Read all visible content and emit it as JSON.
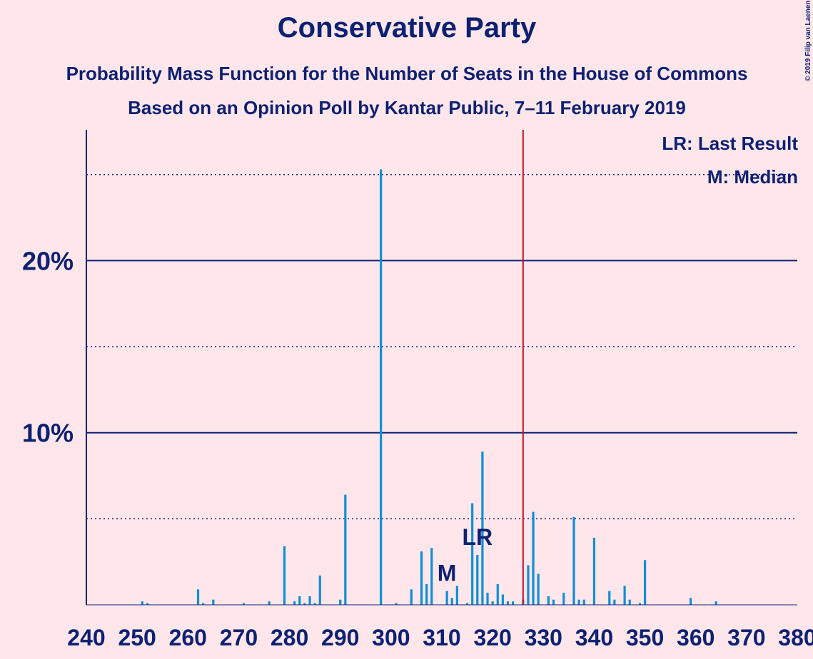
{
  "chart_data": {
    "type": "bar",
    "title": "Conservative Party",
    "subtitle": "Probability Mass Function for the Number of Seats in the House of Commons",
    "subtitle2": "Based on an Opinion Poll by Kantar Public, 7–11 February 2019",
    "copyright": "© 2019 Filip van Laenen",
    "legend": [
      "LR: Last Result",
      "M: Median"
    ],
    "color": "#0f8fd8",
    "x": [
      240,
      241,
      242,
      243,
      244,
      245,
      246,
      247,
      248,
      249,
      250,
      251,
      252,
      253,
      254,
      255,
      256,
      257,
      258,
      259,
      260,
      261,
      262,
      263,
      264,
      265,
      266,
      267,
      268,
      269,
      270,
      271,
      272,
      273,
      274,
      275,
      276,
      277,
      278,
      279,
      280,
      281,
      282,
      283,
      284,
      285,
      286,
      287,
      288,
      289,
      290,
      291,
      292,
      293,
      294,
      295,
      296,
      297,
      298,
      299,
      300,
      301,
      302,
      303,
      304,
      305,
      306,
      307,
      308,
      309,
      310,
      311,
      312,
      313,
      314,
      315,
      316,
      317,
      318,
      319,
      320,
      321,
      322,
      323,
      324,
      325,
      326,
      327,
      328,
      329,
      330,
      331,
      332,
      333,
      334,
      335,
      336,
      337,
      338,
      339,
      340,
      341,
      342,
      343,
      344,
      345,
      346,
      347,
      348,
      349,
      350,
      351,
      352,
      353,
      354,
      355,
      356,
      357,
      358,
      359,
      360,
      361,
      362,
      363,
      364,
      365,
      366,
      367,
      368,
      369,
      370,
      371,
      372,
      373,
      374,
      375,
      376,
      377,
      378,
      379,
      380
    ],
    "values": [
      0,
      0,
      0,
      0,
      0,
      0,
      0,
      0,
      0,
      0,
      0,
      0.2,
      0.1,
      0,
      0,
      0,
      0,
      0,
      0,
      0,
      0,
      0,
      0.9,
      0.1,
      0,
      0.3,
      0,
      0,
      0,
      0,
      0,
      0.1,
      0,
      0,
      0,
      0,
      0.2,
      0,
      0,
      3.4,
      0,
      0.2,
      0.5,
      0.1,
      0.5,
      0.1,
      1.7,
      0,
      0,
      0,
      0.3,
      6.4,
      0,
      0,
      0,
      0,
      0,
      0,
      25.3,
      0,
      0,
      0.1,
      0,
      0,
      0.9,
      0,
      3.1,
      1.2,
      3.3,
      0,
      0,
      0.8,
      0.4,
      1.1,
      0,
      0.1,
      5.9,
      2.9,
      8.9,
      0.7,
      0.2,
      1.2,
      0.6,
      0.2,
      0.2,
      0,
      0.3,
      2.3,
      5.4,
      1.8,
      0,
      0.5,
      0.3,
      0,
      0.7,
      0,
      5.1,
      0.3,
      0.3,
      0,
      3.9,
      0,
      0,
      0.8,
      0.3,
      0,
      1.1,
      0.3,
      0,
      0.1,
      2.6,
      0,
      0,
      0,
      0,
      0,
      0,
      0,
      0,
      0.4,
      0,
      0,
      0,
      0,
      0.2,
      0,
      0,
      0,
      0,
      0,
      0,
      0,
      0,
      0,
      0,
      0,
      0,
      0,
      0,
      0,
      0
    ],
    "xlim": [
      240,
      380
    ],
    "xticks": [
      240,
      250,
      260,
      270,
      280,
      290,
      300,
      310,
      320,
      330,
      340,
      350,
      360,
      370,
      380
    ],
    "ylim": [
      0,
      27.6
    ],
    "yticks": [
      {
        "value": 10,
        "label": "10%"
      },
      {
        "value": 20,
        "label": "20%"
      }
    ],
    "minor_grid": [
      5,
      15,
      25
    ],
    "majority": 326,
    "majority_color": "#c8102e",
    "last_result": 317,
    "last_result_label": "LR",
    "median": 311,
    "median_label": "M"
  }
}
